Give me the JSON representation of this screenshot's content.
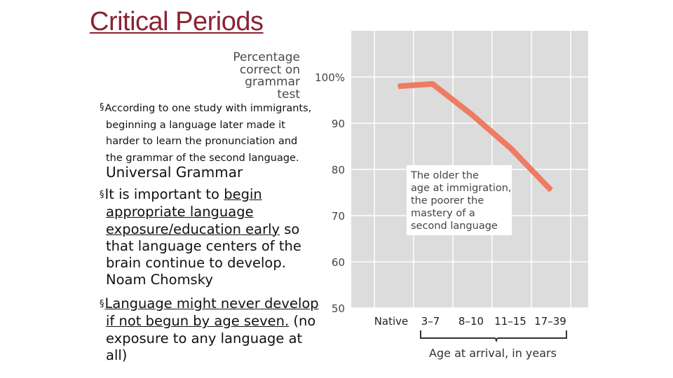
{
  "slide": {
    "title": "Critical Periods",
    "point1_lines": [
      "According to one study with immigrants,",
      "beginning a language later made it",
      "harder to learn the pronunciation and",
      "the grammar of the second language."
    ],
    "heading": "Universal Grammar",
    "point2": {
      "prefix": "It is important to ",
      "u1": "begin",
      "u2": "appropriate language",
      "u3": "exposure/education early",
      "after_u3": " so",
      "rest_lines": [
        "that language centers of the",
        "brain continue to  develop.",
        "Noam Chomsky"
      ]
    },
    "point3": {
      "u1": "Language might never develop",
      "u2": "if not begun by age seven.",
      "after_u2": "  (no",
      "rest_lines": [
        "exposure to any language at",
        "all)"
      ]
    }
  },
  "chart_data": {
    "type": "line",
    "ylabel_lines": [
      "Percentage",
      "correct on",
      "grammar test"
    ],
    "xlabel": "Age at arrival, in years",
    "categories": [
      "Native",
      "3–7",
      "8–10",
      "11–15",
      "17–39"
    ],
    "values": [
      98,
      98.5,
      92,
      84.5,
      75.5
    ],
    "ylim": [
      50,
      100
    ],
    "yticks": [
      {
        "value": 100,
        "label": "100%"
      },
      {
        "value": 90,
        "label": "90"
      },
      {
        "value": 80,
        "label": "80"
      },
      {
        "value": 70,
        "label": "70"
      },
      {
        "value": 60,
        "label": "60"
      },
      {
        "value": 50,
        "label": "50"
      }
    ],
    "annotation_lines": [
      "The older the",
      "age at immigration,",
      "the poorer the",
      "mastery of a",
      "second language"
    ],
    "grid": true,
    "colors": {
      "line": "#ef7b63",
      "panel": "#dcdcdc",
      "grid": "#ffffff"
    }
  }
}
